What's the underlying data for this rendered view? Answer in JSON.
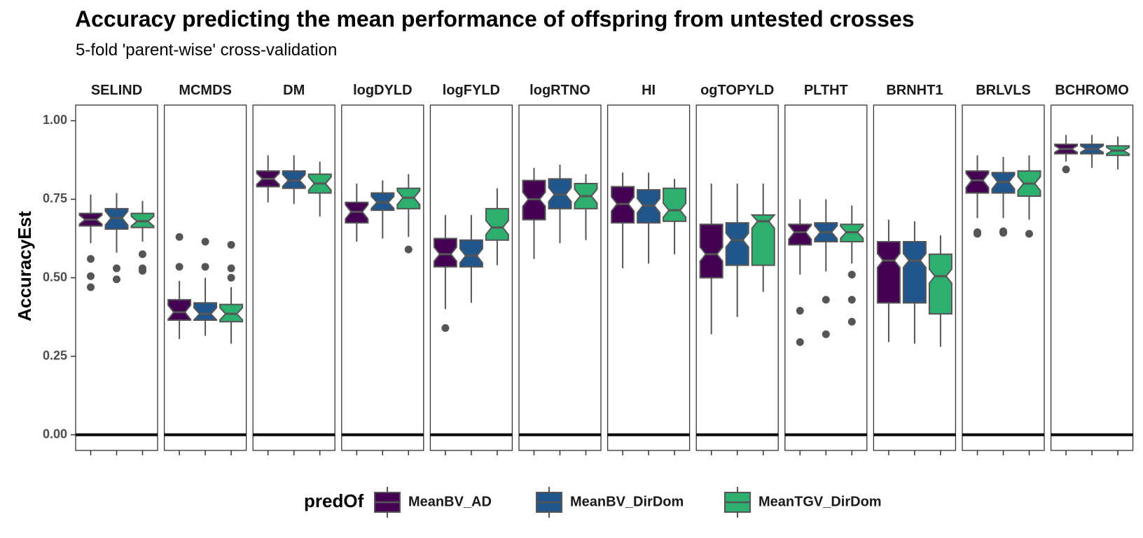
{
  "title": "Accuracy predicting the mean performance of offspring from untested crosses",
  "subtitle": "5-fold 'parent-wise' cross-validation",
  "chart_data": {
    "type": "boxplot",
    "notched": true,
    "ylabel": "AccuracyEst",
    "xlabel": "",
    "ylim": [
      -0.05,
      1.05
    ],
    "yticks": [
      0.0,
      0.25,
      0.5,
      0.75,
      1.0
    ],
    "ytick_labels": [
      "0.00",
      "0.25",
      "0.50",
      "0.75",
      "1.00"
    ],
    "reference_line_y": 0,
    "legend": {
      "title": "predOf",
      "position": "bottom",
      "entries": [
        {
          "name": "MeanBV_AD",
          "color": "#440154"
        },
        {
          "name": "MeanBV_DirDom",
          "color": "#21568C"
        },
        {
          "name": "MeanTGV_DirDom",
          "color": "#2DB06F"
        }
      ]
    },
    "panels": [
      {
        "label": "SELIND",
        "boxes": [
          {
            "series": "MeanBV_AD",
            "q1": 0.665,
            "median": 0.685,
            "q3": 0.705,
            "lower": 0.61,
            "upper": 0.765,
            "outliers": [
              0.56,
              0.505,
              0.47
            ]
          },
          {
            "series": "MeanBV_DirDom",
            "q1": 0.655,
            "median": 0.69,
            "q3": 0.72,
            "lower": 0.58,
            "upper": 0.77,
            "outliers": [
              0.53,
              0.495
            ]
          },
          {
            "series": "MeanTGV_DirDom",
            "q1": 0.66,
            "median": 0.68,
            "q3": 0.705,
            "lower": 0.615,
            "upper": 0.745,
            "outliers": [
              0.575,
              0.53,
              0.522
            ]
          }
        ]
      },
      {
        "label": "MCMDS",
        "boxes": [
          {
            "series": "MeanBV_AD",
            "q1": 0.365,
            "median": 0.39,
            "q3": 0.43,
            "lower": 0.305,
            "upper": 0.49,
            "outliers": [
              0.63,
              0.535
            ]
          },
          {
            "series": "MeanBV_DirDom",
            "q1": 0.365,
            "median": 0.385,
            "q3": 0.42,
            "lower": 0.315,
            "upper": 0.5,
            "outliers": [
              0.615,
              0.535
            ]
          },
          {
            "series": "MeanTGV_DirDom",
            "q1": 0.36,
            "median": 0.385,
            "q3": 0.415,
            "lower": 0.29,
            "upper": 0.47,
            "outliers": [
              0.605,
              0.53,
              0.5
            ]
          }
        ]
      },
      {
        "label": "DM",
        "boxes": [
          {
            "series": "MeanBV_AD",
            "q1": 0.79,
            "median": 0.815,
            "q3": 0.84,
            "lower": 0.74,
            "upper": 0.89,
            "outliers": []
          },
          {
            "series": "MeanBV_DirDom",
            "q1": 0.785,
            "median": 0.81,
            "q3": 0.84,
            "lower": 0.735,
            "upper": 0.89,
            "outliers": []
          },
          {
            "series": "MeanTGV_DirDom",
            "q1": 0.77,
            "median": 0.8,
            "q3": 0.83,
            "lower": 0.695,
            "upper": 0.87,
            "outliers": []
          }
        ]
      },
      {
        "label": "logDYLD",
        "boxes": [
          {
            "series": "MeanBV_AD",
            "q1": 0.675,
            "median": 0.71,
            "q3": 0.74,
            "lower": 0.615,
            "upper": 0.8,
            "outliers": []
          },
          {
            "series": "MeanBV_DirDom",
            "q1": 0.715,
            "median": 0.74,
            "q3": 0.77,
            "lower": 0.625,
            "upper": 0.81,
            "outliers": []
          },
          {
            "series": "MeanTGV_DirDom",
            "q1": 0.72,
            "median": 0.755,
            "q3": 0.785,
            "lower": 0.63,
            "upper": 0.83,
            "outliers": [
              0.59
            ]
          }
        ]
      },
      {
        "label": "logFYLD",
        "boxes": [
          {
            "series": "MeanBV_AD",
            "q1": 0.535,
            "median": 0.575,
            "q3": 0.625,
            "lower": 0.4,
            "upper": 0.7,
            "outliers": [
              0.34
            ]
          },
          {
            "series": "MeanBV_DirDom",
            "q1": 0.535,
            "median": 0.57,
            "q3": 0.62,
            "lower": 0.42,
            "upper": 0.7,
            "outliers": []
          },
          {
            "series": "MeanTGV_DirDom",
            "q1": 0.62,
            "median": 0.66,
            "q3": 0.72,
            "lower": 0.54,
            "upper": 0.785,
            "outliers": []
          }
        ]
      },
      {
        "label": "logRTNO",
        "boxes": [
          {
            "series": "MeanBV_AD",
            "q1": 0.685,
            "median": 0.75,
            "q3": 0.81,
            "lower": 0.56,
            "upper": 0.85,
            "outliers": []
          },
          {
            "series": "MeanBV_DirDom",
            "q1": 0.72,
            "median": 0.765,
            "q3": 0.815,
            "lower": 0.61,
            "upper": 0.86,
            "outliers": []
          },
          {
            "series": "MeanTGV_DirDom",
            "q1": 0.72,
            "median": 0.76,
            "q3": 0.8,
            "lower": 0.62,
            "upper": 0.83,
            "outliers": []
          }
        ]
      },
      {
        "label": "HI",
        "boxes": [
          {
            "series": "MeanBV_AD",
            "q1": 0.675,
            "median": 0.735,
            "q3": 0.79,
            "lower": 0.53,
            "upper": 0.835,
            "outliers": []
          },
          {
            "series": "MeanBV_DirDom",
            "q1": 0.675,
            "median": 0.73,
            "q3": 0.78,
            "lower": 0.545,
            "upper": 0.835,
            "outliers": []
          },
          {
            "series": "MeanTGV_DirDom",
            "q1": 0.68,
            "median": 0.715,
            "q3": 0.785,
            "lower": 0.575,
            "upper": 0.815,
            "outliers": []
          }
        ]
      },
      {
        "label": "ogTOPYLD",
        "boxes": [
          {
            "series": "MeanBV_AD",
            "q1": 0.5,
            "median": 0.575,
            "q3": 0.67,
            "lower": 0.32,
            "upper": 0.8,
            "outliers": []
          },
          {
            "series": "MeanBV_DirDom",
            "q1": 0.54,
            "median": 0.62,
            "q3": 0.675,
            "lower": 0.375,
            "upper": 0.8,
            "outliers": []
          },
          {
            "series": "MeanTGV_DirDom",
            "q1": 0.54,
            "median": 0.68,
            "q3": 0.7,
            "lower": 0.455,
            "upper": 0.8,
            "outliers": []
          }
        ]
      },
      {
        "label": "PLTHT",
        "boxes": [
          {
            "series": "MeanBV_AD",
            "q1": 0.605,
            "median": 0.645,
            "q3": 0.67,
            "lower": 0.51,
            "upper": 0.75,
            "outliers": [
              0.395,
              0.295
            ]
          },
          {
            "series": "MeanBV_DirDom",
            "q1": 0.615,
            "median": 0.645,
            "q3": 0.675,
            "lower": 0.52,
            "upper": 0.75,
            "outliers": [
              0.43,
              0.32
            ]
          },
          {
            "series": "MeanTGV_DirDom",
            "q1": 0.615,
            "median": 0.645,
            "q3": 0.67,
            "lower": 0.545,
            "upper": 0.73,
            "outliers": [
              0.51,
              0.43,
              0.36
            ]
          }
        ]
      },
      {
        "label": "BRNHT1",
        "boxes": [
          {
            "series": "MeanBV_AD",
            "q1": 0.42,
            "median": 0.555,
            "q3": 0.615,
            "lower": 0.295,
            "upper": 0.685,
            "outliers": []
          },
          {
            "series": "MeanBV_DirDom",
            "q1": 0.42,
            "median": 0.555,
            "q3": 0.615,
            "lower": 0.29,
            "upper": 0.68,
            "outliers": []
          },
          {
            "series": "MeanTGV_DirDom",
            "q1": 0.385,
            "median": 0.505,
            "q3": 0.575,
            "lower": 0.28,
            "upper": 0.635,
            "outliers": []
          }
        ]
      },
      {
        "label": "BRLVLS",
        "boxes": [
          {
            "series": "MeanBV_AD",
            "q1": 0.77,
            "median": 0.81,
            "q3": 0.84,
            "lower": 0.69,
            "upper": 0.89,
            "outliers": [
              0.645,
              0.64
            ]
          },
          {
            "series": "MeanBV_DirDom",
            "q1": 0.77,
            "median": 0.805,
            "q3": 0.835,
            "lower": 0.69,
            "upper": 0.885,
            "outliers": [
              0.648,
              0.643
            ]
          },
          {
            "series": "MeanTGV_DirDom",
            "q1": 0.76,
            "median": 0.8,
            "q3": 0.84,
            "lower": 0.685,
            "upper": 0.89,
            "outliers": [
              0.64
            ]
          }
        ]
      },
      {
        "label": "BCHROMO",
        "boxes": [
          {
            "series": "MeanBV_AD",
            "q1": 0.895,
            "median": 0.91,
            "q3": 0.925,
            "lower": 0.87,
            "upper": 0.955,
            "outliers": [
              0.845
            ]
          },
          {
            "series": "MeanBV_DirDom",
            "q1": 0.895,
            "median": 0.91,
            "q3": 0.925,
            "lower": 0.85,
            "upper": 0.955,
            "outliers": []
          },
          {
            "series": "MeanTGV_DirDom",
            "q1": 0.89,
            "median": 0.905,
            "q3": 0.92,
            "lower": 0.845,
            "upper": 0.95,
            "outliers": []
          }
        ]
      }
    ]
  }
}
